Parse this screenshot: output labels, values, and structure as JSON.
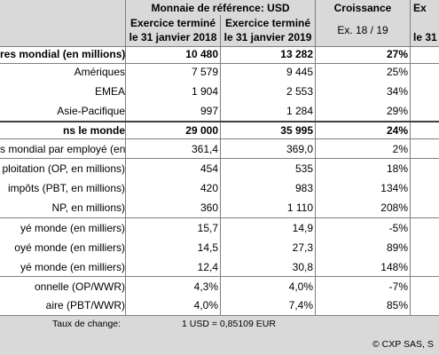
{
  "header": {
    "currency": "Monnaie de référence: USD",
    "col1_line1": "Exercice terminé",
    "col1_line2": "le 31 janvier 2018",
    "col2_line1": "Exercice terminé",
    "col2_line2": "le 31 janvier 2019",
    "growth": "Croissance",
    "growth_sub": "Ex. 18 / 19",
    "col_cut_top": "Ex",
    "col_cut_bottom": "le 31"
  },
  "rows": [
    {
      "label": "res mondial (en millions)",
      "v1": "10 480",
      "v2": "13 282",
      "g": "27%",
      "bold": true
    },
    {
      "label": "Amériques",
      "v1": "7 579",
      "v2": "9 445",
      "g": "25%",
      "bold": false
    },
    {
      "label": "EMEA",
      "v1": "1 904",
      "v2": "2 553",
      "g": "34%",
      "bold": false
    },
    {
      "label": "Asie-Pacifique",
      "v1": "997",
      "v2": "1 284",
      "g": "29%",
      "bold": false
    },
    {
      "label": "ns le monde",
      "v1": "29 000",
      "v2": "35 995",
      "g": "24%",
      "bold": true
    },
    {
      "label": "s mondial par employé (en",
      "v1": "361,4",
      "v2": "369,0",
      "g": "2%",
      "bold": false
    },
    {
      "label": "ploitation (OP, en millions)",
      "v1": "454",
      "v2": "535",
      "g": "18%",
      "bold": false
    },
    {
      "label": "impôts (PBT, en millions)",
      "v1": "420",
      "v2": "983",
      "g": "134%",
      "bold": false
    },
    {
      "label": "NP, en millions)",
      "v1": "360",
      "v2": "1 110",
      "g": "208%",
      "bold": false
    },
    {
      "label": "yé monde (en milliers)",
      "v1": "15,7",
      "v2": "14,9",
      "g": "-5%",
      "bold": false
    },
    {
      "label": "oyé monde (en milliers)",
      "v1": "14,5",
      "v2": "27,3",
      "g": "89%",
      "bold": false
    },
    {
      "label": "yé monde (en milliers)",
      "v1": "12,4",
      "v2": "30,8",
      "g": "148%",
      "bold": false
    },
    {
      "label": "onnelle (OP/WWR)",
      "v1": "4,3%",
      "v2": "4,0%",
      "g": "-7%",
      "bold": false
    },
    {
      "label": "aire (PBT/WWR)",
      "v1": "4,0%",
      "v2": "7,4%",
      "g": "85%",
      "bold": false
    }
  ],
  "footer": {
    "rate_label": "Taux de change:",
    "rate_value": "1 USD = 0,85109 EUR",
    "copyright": "© CXP SAS, S"
  }
}
